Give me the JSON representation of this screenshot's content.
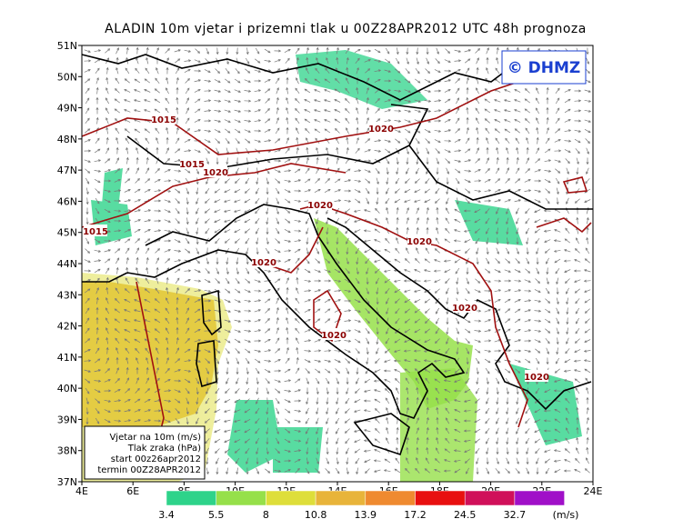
{
  "title": "ALADIN 10m vjetar i prizemni tlak u 00Z28APR2012 UTC 48h prognoza",
  "logo": "© DHMZ",
  "lat_labels": [
    "51N",
    "50N",
    "49N",
    "48N",
    "47N",
    "46N",
    "45N",
    "44N",
    "43N",
    "42N",
    "41N",
    "40N",
    "39N",
    "38N",
    "37N"
  ],
  "lon_labels": [
    "4E",
    "6E",
    "8E",
    "10E",
    "12E",
    "14E",
    "16E",
    "18E",
    "20E",
    "22E",
    "24E"
  ],
  "isobar_labels": [
    "1015",
    "1015",
    "1015",
    "1020",
    "1020",
    "1020",
    "1020",
    "1020",
    "1020",
    "1020",
    "1020"
  ],
  "info_box": [
    "Vjetar na 10m (m/s)",
    "Tlak zraka (hPa)",
    "start 00z26apr2012",
    "termin 00Z28APR2012"
  ],
  "legend": {
    "values": [
      3.4,
      5.5,
      8,
      10.8,
      13.9,
      17.2,
      24.5,
      32.7
    ],
    "colors": [
      "#2ed38a",
      "#96e04a",
      "#dede3a",
      "#e8b43a",
      "#ef8a30",
      "#e81010",
      "#d0105a",
      "#a010c8"
    ],
    "unit": "(m/s)"
  }
}
